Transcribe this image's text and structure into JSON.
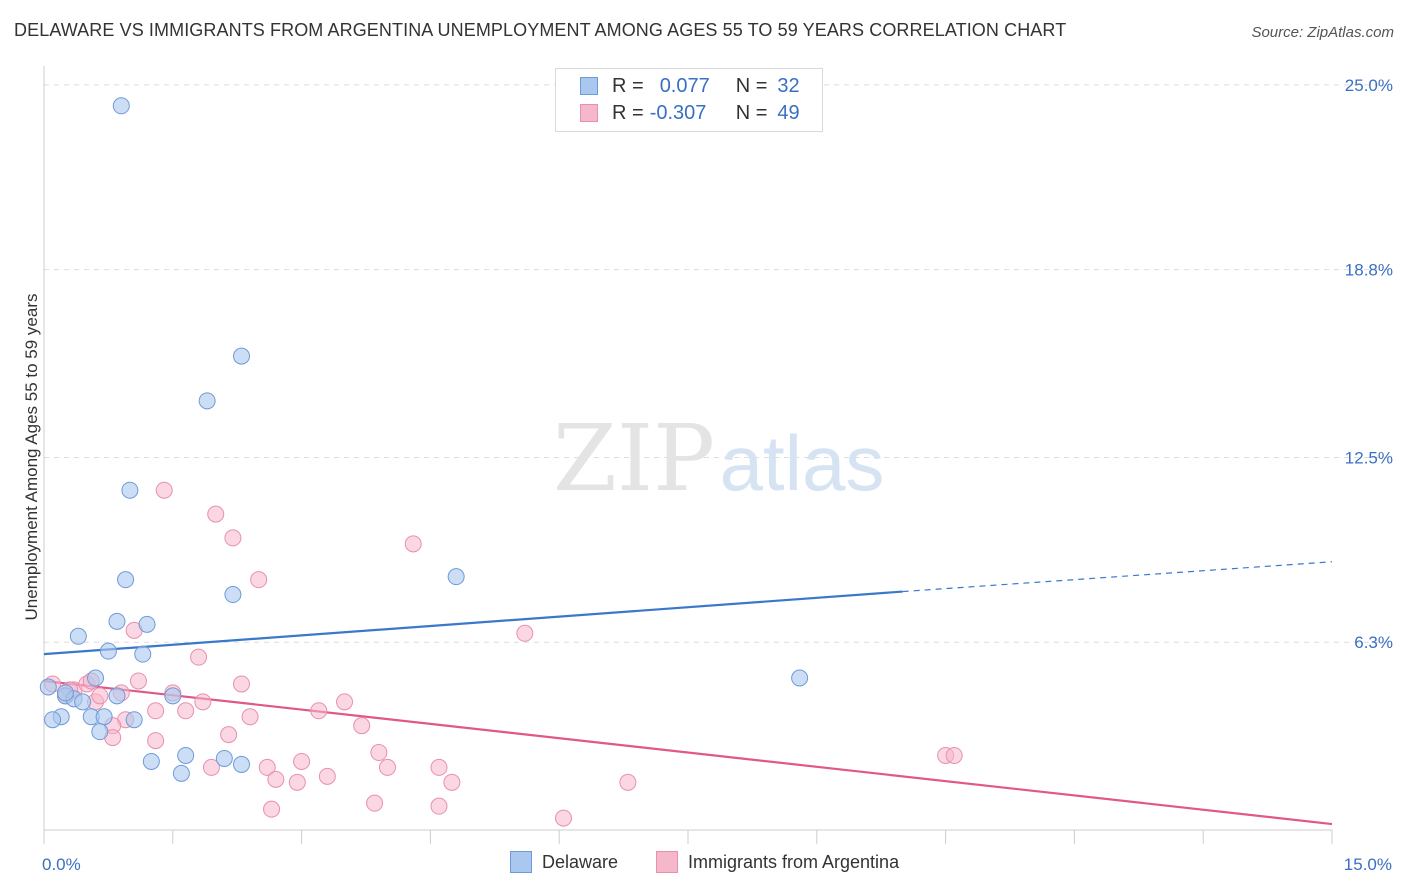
{
  "header": {
    "title": "DELAWARE VS IMMIGRANTS FROM ARGENTINA UNEMPLOYMENT AMONG AGES 55 TO 59 YEARS CORRELATION CHART",
    "source": "Source: ZipAtlas.com"
  },
  "watermark": {
    "zip": "ZIP",
    "atlas": "atlas"
  },
  "legend": {
    "series1": {
      "r_label": "R =",
      "r_value": "0.077",
      "n_label": "N =",
      "n_value": "32"
    },
    "series2": {
      "r_label": "R =",
      "r_value": "-0.307",
      "n_label": "N =",
      "n_value": "49"
    }
  },
  "bottom_legend": {
    "series1": "Delaware",
    "series2": "Immigrants from Argentina"
  },
  "colors": {
    "blue_fill": "#aac8ef",
    "blue_stroke": "#6f9ad8",
    "blue_line": "#3a78cc",
    "pink_fill": "#f5b7ca",
    "pink_stroke": "#e890ad",
    "pink_line": "#e0578a",
    "tick_text": "#3a6fc4",
    "grid": "#dddddd"
  },
  "chart_data": {
    "type": "scatter",
    "title": "DELAWARE VS IMMIGRANTS FROM ARGENTINA UNEMPLOYMENT AMONG AGES 55 TO 59 YEARS CORRELATION CHART",
    "xlabel": "",
    "ylabel": "Unemployment Among Ages 55 to 59 years",
    "xlim": [
      0,
      15
    ],
    "ylim": [
      0,
      25.5
    ],
    "x_tick_labels": [
      "0.0%",
      "15.0%"
    ],
    "x_tick_values": [
      0,
      15
    ],
    "y_ticks": [
      {
        "value": 25.0,
        "label": "25.0%"
      },
      {
        "value": 18.8,
        "label": "18.8%"
      },
      {
        "value": 12.5,
        "label": "12.5%"
      },
      {
        "value": 6.3,
        "label": "6.3%"
      }
    ],
    "series": [
      {
        "name": "Delaware",
        "r": 0.077,
        "n": 32,
        "trend": {
          "x0": 0,
          "y0": 5.9,
          "x1": 10.0,
          "y1": 8.0,
          "dashed_to_x": 15.0,
          "dashed_to_y": 9.0
        },
        "points": [
          [
            0.9,
            24.3
          ],
          [
            2.3,
            15.9
          ],
          [
            1.9,
            14.4
          ],
          [
            1.0,
            11.4
          ],
          [
            0.95,
            8.4
          ],
          [
            2.2,
            7.9
          ],
          [
            4.8,
            8.5
          ],
          [
            0.85,
            7.0
          ],
          [
            1.2,
            6.9
          ],
          [
            0.4,
            6.5
          ],
          [
            0.75,
            6.0
          ],
          [
            1.15,
            5.9
          ],
          [
            0.6,
            5.1
          ],
          [
            8.8,
            5.1
          ],
          [
            0.05,
            4.8
          ],
          [
            0.25,
            4.5
          ],
          [
            0.35,
            4.4
          ],
          [
            0.45,
            4.3
          ],
          [
            0.85,
            4.5
          ],
          [
            1.5,
            4.5
          ],
          [
            0.2,
            3.8
          ],
          [
            0.1,
            3.7
          ],
          [
            0.55,
            3.8
          ],
          [
            0.7,
            3.8
          ],
          [
            1.05,
            3.7
          ],
          [
            0.65,
            3.3
          ],
          [
            1.65,
            2.5
          ],
          [
            1.25,
            2.3
          ],
          [
            2.1,
            2.4
          ],
          [
            2.3,
            2.2
          ],
          [
            1.6,
            1.9
          ],
          [
            0.25,
            4.6
          ]
        ]
      },
      {
        "name": "Immigrants from Argentina",
        "r": -0.307,
        "n": 49,
        "trend": {
          "x0": 0,
          "y0": 5.0,
          "x1": 15.0,
          "y1": 0.2
        },
        "points": [
          [
            1.4,
            11.4
          ],
          [
            2.0,
            10.6
          ],
          [
            2.2,
            9.8
          ],
          [
            4.3,
            9.6
          ],
          [
            2.5,
            8.4
          ],
          [
            1.05,
            6.7
          ],
          [
            5.6,
            6.6
          ],
          [
            1.8,
            5.8
          ],
          [
            0.1,
            4.9
          ],
          [
            0.35,
            4.7
          ],
          [
            0.5,
            4.9
          ],
          [
            0.55,
            5.0
          ],
          [
            1.1,
            5.0
          ],
          [
            2.3,
            4.9
          ],
          [
            0.25,
            4.5
          ],
          [
            0.6,
            4.3
          ],
          [
            0.65,
            4.5
          ],
          [
            1.5,
            4.6
          ],
          [
            1.85,
            4.3
          ],
          [
            3.5,
            4.3
          ],
          [
            1.3,
            4.0
          ],
          [
            1.65,
            4.0
          ],
          [
            3.2,
            4.0
          ],
          [
            0.95,
            3.7
          ],
          [
            2.4,
            3.8
          ],
          [
            3.7,
            3.5
          ],
          [
            0.8,
            3.5
          ],
          [
            2.15,
            3.2
          ],
          [
            0.8,
            3.1
          ],
          [
            1.3,
            3.0
          ],
          [
            3.9,
            2.6
          ],
          [
            3.0,
            2.3
          ],
          [
            2.6,
            2.1
          ],
          [
            1.95,
            2.1
          ],
          [
            4.0,
            2.1
          ],
          [
            4.6,
            2.1
          ],
          [
            3.3,
            1.8
          ],
          [
            2.7,
            1.7
          ],
          [
            2.95,
            1.6
          ],
          [
            4.75,
            1.6
          ],
          [
            6.8,
            1.6
          ],
          [
            10.5,
            2.5
          ],
          [
            10.6,
            2.5
          ],
          [
            3.85,
            0.9
          ],
          [
            4.6,
            0.8
          ],
          [
            2.65,
            0.7
          ],
          [
            6.05,
            0.4
          ],
          [
            0.3,
            4.7
          ],
          [
            0.9,
            4.6
          ]
        ]
      }
    ]
  }
}
